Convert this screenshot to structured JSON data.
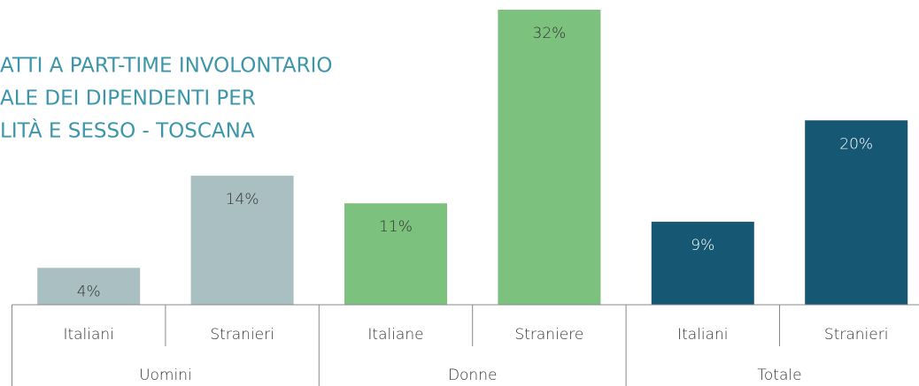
{
  "chart_data": {
    "type": "bar",
    "title_lines": [
      "ATTI A PART-TIME INVOLONTARIO",
      "ALE DEI DIPENDENTI PER",
      "LITÀ E SESSO - TOSCANA"
    ],
    "categories": [
      "Italiani",
      "Stranieri",
      "Italiane",
      "Straniere",
      "Italiani",
      "Stranieri"
    ],
    "groups": [
      "Uomini",
      "Donne",
      "Totale"
    ],
    "values": [
      4,
      14,
      11,
      32,
      9,
      20
    ],
    "value_labels": [
      "4%",
      "14%",
      "11%",
      "32%",
      "9%",
      "20%"
    ],
    "colors": [
      "#a9bfc2",
      "#a9bfc2",
      "#7cc17d",
      "#7cc17d",
      "#165774",
      "#165774"
    ],
    "value_label_colors": [
      "#333333",
      "#333333",
      "#333333",
      "#333333",
      "#ffffff",
      "#ffffff"
    ]
  }
}
